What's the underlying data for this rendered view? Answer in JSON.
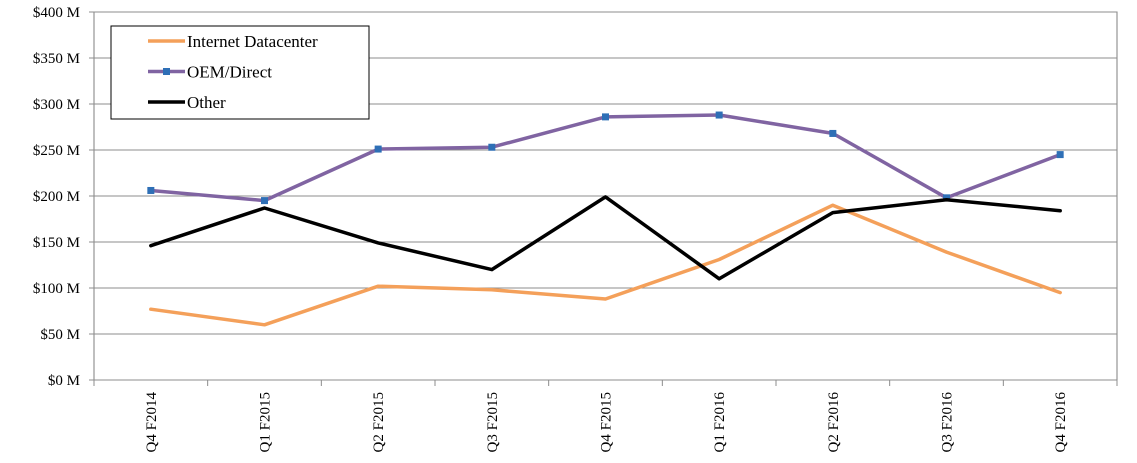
{
  "chart_data": {
    "type": "line",
    "title": "",
    "xlabel": "",
    "ylabel": "",
    "categories": [
      "Q4 F2014",
      "Q1 F2015",
      "Q2 F2015",
      "Q3 F2015",
      "Q4 F2015",
      "Q1 F2016",
      "Q2 F2016",
      "Q3 F2016",
      "Q4 F2016"
    ],
    "ylim": [
      0,
      400
    ],
    "y_ticks": [
      0,
      50,
      100,
      150,
      200,
      250,
      300,
      350,
      400
    ],
    "y_tick_labels": [
      "$0 M",
      "$50 M",
      "$100 M",
      "$150 M",
      "$200 M",
      "$250 M",
      "$300 M",
      "$350 M",
      "$400 M"
    ],
    "grid": true,
    "legend_position": "top-left",
    "series": [
      {
        "name": "Internet Datacenter",
        "color": "#f4a05a",
        "marker": "none",
        "values": [
          77,
          60,
          102,
          98,
          88,
          131,
          190,
          139,
          95
        ]
      },
      {
        "name": "OEM/Direct",
        "color": "#8064a2",
        "marker": "square",
        "marker_color": "#2e6fb6",
        "values": [
          206,
          195,
          251,
          253,
          286,
          288,
          268,
          198,
          245
        ]
      },
      {
        "name": "Other",
        "color": "#000000",
        "marker": "none",
        "values": [
          146,
          187,
          149,
          120,
          199,
          110,
          182,
          196,
          184
        ]
      }
    ]
  }
}
